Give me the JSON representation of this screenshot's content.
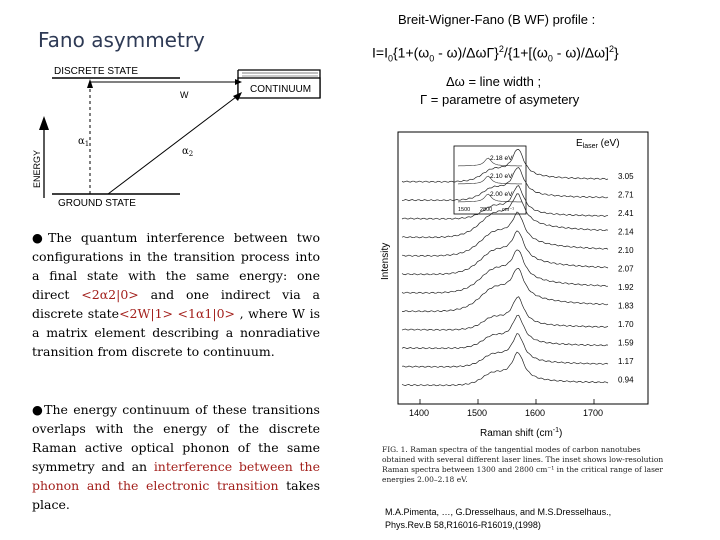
{
  "slide": {
    "title": "Fano asymmetry",
    "bw_title": "Breit-Wigner-Fano (B WF)  profile :",
    "formula": "I=I0{1+(ω0 - ω)/ΔωΓ}²/{1+[(ω0 - ω)/Δω]²}",
    "formula_parts": {
      "f1": "I=I",
      "f2": "0",
      "f3": "{1+(ω",
      "f4": "0",
      "f5": " - ω)/ΔωΓ}",
      "f6": "2",
      "f7": "/{1+[(ω",
      "f8": "0",
      "f9": " - ω)/Δω]",
      "f10": "2",
      "f11": "}"
    },
    "note1": "Δω = line width ;",
    "note2": "Γ = parametre of asymetery",
    "citation_1": "M.A.Pimenta, …, G.Dresselhaus, and M.S.Dresselhaus.,",
    "citation_2": "Phys.Rev.B 58,R16016-R16019,(1998)"
  },
  "diagram": {
    "discrete": "DISCRETE  STATE",
    "continuum": "CONTINUUM",
    "w": "W",
    "alpha1": "α",
    "alpha1_sub": "1",
    "alpha2": "α",
    "alpha2_sub": "2",
    "energy": "ENERGY",
    "ground": "GROUND  STATE"
  },
  "paragraph1": {
    "bullet": "●",
    "t1": "The quantum interference between two configurations in the transition process into a final state with the same energy: one direct ",
    "r1": "<2α2|0>",
    "t2": " and one indirect via a discrete state",
    "r2": "<2W|1> <1α1|0>",
    "t3": " , where W is a matrix element describing a nonradiative transition from discrete to continuum."
  },
  "paragraph2": {
    "bullet": "●",
    "t1": "The energy continuum of these transitions overlaps with the energy of the discrete Raman active optical phonon of the same symmetry and an ",
    "r1": "interference between the phonon and the electronic transition",
    "t2": " takes place."
  },
  "figure": {
    "ylabel": "Intensity",
    "xlabel": "Raman shift (cm",
    "xlabel_sup": "-1",
    "xlabel_end": ")",
    "elaser": "E",
    "elaser_sub": "laser",
    "elaser_unit": " (eV)",
    "energies": [
      "3.05",
      "2.71",
      "2.41",
      "2.14",
      "2.10",
      "2.07",
      "1.92",
      "1.83",
      "1.70",
      "1.59",
      "1.17",
      "0.94"
    ],
    "inset_labels": [
      "2.18 eV",
      "2.10 eV",
      "2.00 eV"
    ],
    "inset_ticks": [
      "1500",
      "2800",
      "cm⁻¹"
    ],
    "x_ticks": [
      "1400",
      "1500",
      "1600",
      "1700"
    ],
    "caption": "FIG. 1.  Raman spectra of the tangential modes of carbon nanotubes obtained with several different laser lines. The inset shows low-resolution Raman spectra between 1300 and 2800 cm⁻¹ in the critical range of laser energies 2.00–2.18 eV."
  }
}
